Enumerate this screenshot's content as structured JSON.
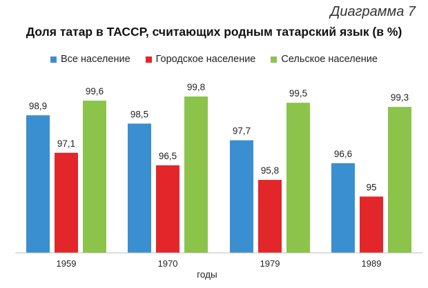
{
  "figure_label": "Диаграмма 7",
  "chart_data": {
    "type": "bar",
    "title": "Доля татар в ТАССР, считающих родным татарский язык (в %)",
    "xlabel": "годы",
    "ylabel": "",
    "categories": [
      "1959",
      "1970",
      "1979",
      "1989"
    ],
    "series": [
      {
        "name": "Все население",
        "color": "#3a8fd0",
        "values": [
          98.9,
          98.5,
          97.7,
          96.6
        ],
        "labels": [
          "98,9",
          "98,5",
          "97,7",
          "96,6"
        ]
      },
      {
        "name": "Городское население",
        "color": "#e3262a",
        "values": [
          97.1,
          96.5,
          95.8,
          95
        ],
        "labels": [
          "97,1",
          "96,5",
          "95,8",
          "95"
        ]
      },
      {
        "name": "Сельское население",
        "color": "#8cc34a",
        "values": [
          99.6,
          99.8,
          99.5,
          99.3
        ],
        "labels": [
          "99,6",
          "99,8",
          "99,5",
          "99,3"
        ]
      }
    ],
    "ylim": [
      92.3,
      100
    ],
    "legend_position": "top",
    "grid": false
  }
}
